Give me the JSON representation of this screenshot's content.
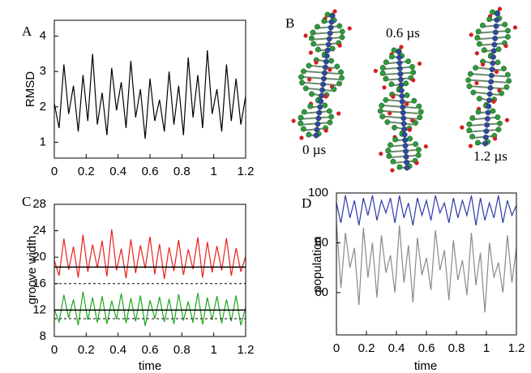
{
  "chart_data": [
    {
      "type": "line",
      "panel_label": "A",
      "ylabel": "RMSD",
      "x": [
        0,
        0.03,
        0.06,
        0.09,
        0.12,
        0.15,
        0.18,
        0.21,
        0.24,
        0.27,
        0.3,
        0.33,
        0.36,
        0.39,
        0.42,
        0.45,
        0.48,
        0.51,
        0.54,
        0.57,
        0.6,
        0.63,
        0.66,
        0.69,
        0.72,
        0.75,
        0.78,
        0.81,
        0.84,
        0.87,
        0.9,
        0.93,
        0.96,
        0.99,
        1.02,
        1.05,
        1.08,
        1.11,
        1.14,
        1.17,
        1.2
      ],
      "series": [
        {
          "color": "#000000",
          "values": [
            2.1,
            1.4,
            3.2,
            1.8,
            2.6,
            1.3,
            2.9,
            1.6,
            3.5,
            1.5,
            2.4,
            1.2,
            3.1,
            1.9,
            2.7,
            1.4,
            3.3,
            1.7,
            2.5,
            1.1,
            2.8,
            1.6,
            2.2,
            1.3,
            3.0,
            1.5,
            2.6,
            1.2,
            3.4,
            1.7,
            2.9,
            1.4,
            3.6,
            1.8,
            2.5,
            1.3,
            3.2,
            1.6,
            2.8,
            1.5,
            2.3
          ]
        }
      ],
      "xlim": [
        0,
        1.2
      ],
      "xticks": [
        0,
        0.2,
        0.4,
        0.6,
        0.8,
        1,
        1.2
      ],
      "ylim": [
        0.55,
        4.45
      ],
      "yticks": [
        1,
        2,
        3,
        4
      ]
    },
    {
      "type": "line",
      "panel_label": "C",
      "ylabel": "groove width",
      "xlabel": "time",
      "x": [
        0,
        0.03,
        0.06,
        0.09,
        0.12,
        0.15,
        0.18,
        0.21,
        0.24,
        0.27,
        0.3,
        0.33,
        0.36,
        0.39,
        0.42,
        0.45,
        0.48,
        0.51,
        0.54,
        0.57,
        0.6,
        0.63,
        0.66,
        0.69,
        0.72,
        0.75,
        0.78,
        0.81,
        0.84,
        0.87,
        0.9,
        0.93,
        0.96,
        0.99,
        1.02,
        1.05,
        1.08,
        1.11,
        1.14,
        1.17,
        1.2
      ],
      "series": [
        {
          "color": "#e8201c",
          "values": [
            19.5,
            17.2,
            22.8,
            18.1,
            21.6,
            16.9,
            23.4,
            17.8,
            21.9,
            18.4,
            22.5,
            17.1,
            24.2,
            18.0,
            21.3,
            16.8,
            22.7,
            17.6,
            21.8,
            18.3,
            23.1,
            17.4,
            22.0,
            16.7,
            21.5,
            17.9,
            22.6,
            17.3,
            21.2,
            18.2,
            23.0,
            16.9,
            22.3,
            17.7,
            21.7,
            18.0,
            22.9,
            17.2,
            21.4,
            17.8,
            20.1
          ]
        },
        {
          "color": "#1fa81f",
          "values": [
            12.1,
            10.2,
            14.3,
            10.8,
            13.6,
            9.7,
            14.8,
            10.5,
            13.9,
            10.1,
            14.1,
            9.9,
            13.4,
            10.6,
            14.5,
            10.0,
            13.8,
            10.3,
            14.2,
            9.6,
            13.5,
            10.7,
            14.0,
            10.2,
            13.7,
            9.9,
            14.4,
            10.4,
            13.3,
            10.1,
            14.6,
            9.8,
            13.9,
            10.5,
            14.1,
            10.0,
            13.6,
            10.3,
            14.2,
            9.7,
            12.4
          ]
        }
      ],
      "hlines": [
        {
          "value": 18.5,
          "style": "solid"
        },
        {
          "value": 12,
          "style": "solid"
        },
        {
          "value": 16,
          "style": "dashed"
        },
        {
          "value": 10.7,
          "style": "dashed"
        }
      ],
      "xlim": [
        0,
        1.2
      ],
      "xticks": [
        0,
        0.2,
        0.4,
        0.6,
        0.8,
        1,
        1.2
      ],
      "ylim": [
        8,
        28
      ],
      "yticks": [
        8,
        12,
        16,
        20,
        24,
        28
      ]
    },
    {
      "type": "line",
      "panel_label": "D",
      "ylabel": "population",
      "xlabel": "time",
      "x": [
        0,
        0.03,
        0.06,
        0.09,
        0.12,
        0.15,
        0.18,
        0.21,
        0.24,
        0.27,
        0.3,
        0.33,
        0.36,
        0.39,
        0.42,
        0.45,
        0.48,
        0.51,
        0.54,
        0.57,
        0.6,
        0.63,
        0.66,
        0.69,
        0.72,
        0.75,
        0.78,
        0.81,
        0.84,
        0.87,
        0.9,
        0.93,
        0.96,
        0.99,
        1.02,
        1.05,
        1.08,
        1.11,
        1.14,
        1.17,
        1.2
      ],
      "series": [
        {
          "color": "#8a8a8a",
          "values": [
            88,
            62,
            84,
            70,
            78,
            55,
            86,
            66,
            80,
            58,
            83,
            68,
            75,
            60,
            87,
            64,
            79,
            56,
            82,
            67,
            74,
            61,
            85,
            69,
            77,
            57,
            81,
            65,
            73,
            59,
            84,
            63,
            76,
            52,
            80,
            66,
            72,
            60,
            83,
            64,
            78
          ]
        },
        {
          "color": "#2a3ba8",
          "values": [
            96,
            88,
            99,
            90,
            97,
            87,
            98,
            91,
            99,
            89,
            97,
            92,
            98,
            88,
            99,
            90,
            96,
            87,
            98,
            91,
            97,
            89,
            99,
            92,
            96,
            88,
            98,
            90,
            97,
            91,
            99,
            87,
            98,
            89,
            96,
            90,
            99,
            88,
            97,
            91,
            95
          ]
        }
      ],
      "xlim": [
        0,
        1.2
      ],
      "xticks": [
        0,
        0.2,
        0.4,
        0.6,
        0.8,
        1,
        1.2
      ],
      "ylim": [
        43,
        100
      ],
      "yticks": [
        60,
        80,
        100
      ]
    }
  ],
  "image_panel": {
    "panel_label": "B",
    "annotations": [
      "0 µs",
      "0.6 µs",
      "1.2 µs"
    ]
  }
}
